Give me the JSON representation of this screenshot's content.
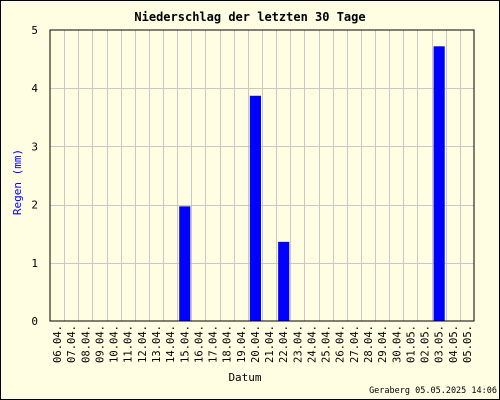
{
  "chart_data": {
    "type": "bar",
    "title": "Niederschlag der letzten 30 Tage",
    "xlabel": "Datum",
    "ylabel": "Regen (mm)",
    "ylim": [
      0,
      5
    ],
    "yticks": [
      "0",
      "1",
      "2",
      "3",
      "4",
      "5"
    ],
    "grid": true,
    "categories": [
      "06.04.",
      "07.04.",
      "08.04.",
      "09.04.",
      "10.04.",
      "11.04.",
      "12.04.",
      "13.04.",
      "14.04.",
      "15.04.",
      "16.04.",
      "17.04.",
      "18.04.",
      "19.04.",
      "20.04.",
      "21.04.",
      "22.04.",
      "23.04.",
      "24.04.",
      "25.04.",
      "26.04.",
      "27.04.",
      "28.04.",
      "29.04.",
      "30.04.",
      "01.05.",
      "02.05.",
      "03.05.",
      "04.05.",
      "05.05."
    ],
    "values": [
      0,
      0,
      0,
      0,
      0,
      0,
      0,
      0,
      0,
      1.97,
      0,
      0,
      0,
      0,
      3.87,
      0,
      1.36,
      0,
      0,
      0,
      0,
      0,
      0,
      0,
      0,
      0,
      0,
      4.72,
      0,
      0
    ],
    "bar_color": "#0000ff",
    "background_color": "#fffee3",
    "footer": "Geraberg 05.05.2025 14:06"
  }
}
